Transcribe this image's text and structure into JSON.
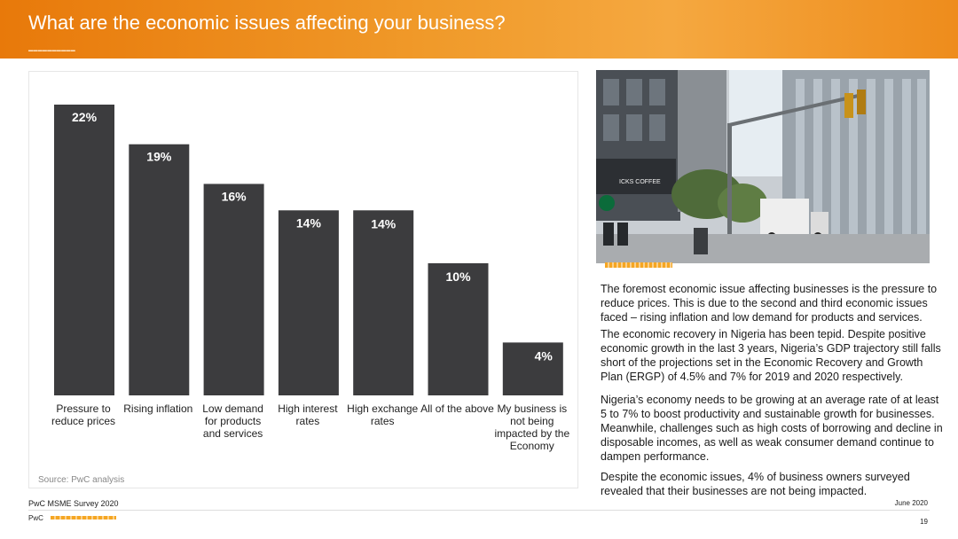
{
  "header": {
    "title": "What are the economic issues affecting your business?"
  },
  "chart_data": {
    "type": "bar",
    "categories": [
      [
        "Pressure to",
        "reduce prices"
      ],
      [
        "Rising inflation"
      ],
      [
        "Low demand",
        "for products",
        "and services"
      ],
      [
        "High interest",
        "rates"
      ],
      [
        "High exchange",
        "rates"
      ],
      [
        "All of the above"
      ],
      [
        "My business is",
        "not being",
        "impacted by the",
        "Economy"
      ]
    ],
    "values": [
      22,
      19,
      16,
      14,
      14,
      10,
      4
    ],
    "data_labels": [
      "22%",
      "19%",
      "16%",
      "14%",
      "14%",
      "10%",
      "4%"
    ],
    "bar_color": "#3c3c3e",
    "label_color": "#ffffff",
    "ylim": [
      0,
      22
    ],
    "grid": false,
    "legend": "none"
  },
  "chart_source": "Source: PwC analysis",
  "paragraphs": [
    "The foremost economic issue affecting businesses is the pressure to reduce prices. This is due  to the second and third economic issues faced – rising inflation and low demand for products and services.",
    "The economic recovery in Nigeria has been tepid. Despite positive economic growth in the last 3 years, Nigeria’s GDP trajectory still falls short of the projections set in the Economic Recovery and Growth Plan (ERGP) of 4.5% and 7% for 2019 and 2020 respectively.",
    "Nigeria’s economy needs to be growing at an average rate of at least 5 to 7% to boost productivity and sustainable growth for businesses. Meanwhile, challenges such as high costs of borrowing and decline in disposable incomes, as well as weak consumer demand continue to dampen performance.",
    "Despite the economic issues, 4% of business owners surveyed revealed that their businesses are not being impacted."
  ],
  "photo": {
    "storefront_sign": "ICKS COFFEE"
  },
  "footer": {
    "survey": "PwC MSME Survey 2020",
    "date": "June 2020",
    "brand": "PwC",
    "page": "19"
  },
  "colors": {
    "accent": "#f09a2a",
    "header_start": "#e8790a",
    "bar": "#3c3c3e"
  }
}
